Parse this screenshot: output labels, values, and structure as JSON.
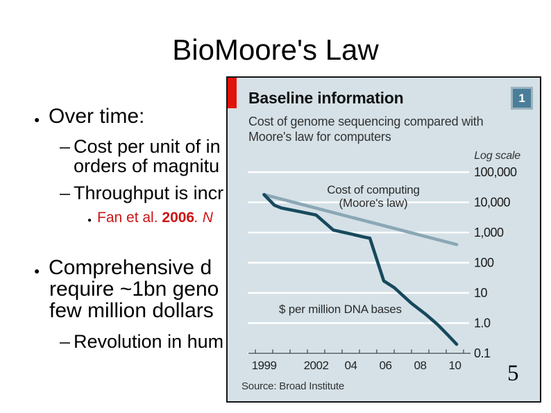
{
  "slide": {
    "title": "BioMoore's Law",
    "page_number": "5",
    "lines": {
      "over_time": "Over time:",
      "cost1": "Cost per unit of in",
      "cost2": "orders of magnitu",
      "throughput": "Throughput is incr",
      "fan_pre": "Fan et al. ",
      "fan_year": "2006",
      "fan_post": ". N",
      "comprehensive1": "Comprehensive d",
      "comprehensive2": "require ~1bn geno",
      "comprehensive3": "few million dollars",
      "revolution": "Revolution in hum"
    },
    "accent_color": "#cc1414"
  },
  "chart": {
    "header": {
      "title": "Baseline information",
      "subtitle_line1": "Cost of genome sequencing compared with",
      "subtitle_line2": "Moore's law for computers",
      "badge": "1"
    },
    "log_scale_label": "Log scale",
    "series_labels": {
      "moore_line1": "Cost of computing",
      "moore_line2": "(Moore's law)",
      "dna": "$ per million DNA bases"
    },
    "source": "Source: Broad Institute",
    "colors": {
      "background": "#d5e1e7",
      "red_tab": "#e3120b",
      "badge_bg": "#4a7e98",
      "dna_line": "#17495c",
      "moore_line": "#8ba7b5",
      "grid": "#ffffff"
    },
    "y_ticks": [
      {
        "label": "100,000",
        "value": 100000
      },
      {
        "label": "10,000",
        "value": 10000
      },
      {
        "label": "1,000",
        "value": 1000
      },
      {
        "label": "100",
        "value": 100
      },
      {
        "label": "10",
        "value": 10
      },
      {
        "label": "1.0",
        "value": 1
      },
      {
        "label": "0.1",
        "value": 0.1
      }
    ],
    "x_ticks": [
      {
        "label": "1999",
        "year": 1999
      },
      {
        "label": "2002",
        "year": 2002
      },
      {
        "label": "04",
        "year": 2004
      },
      {
        "label": "06",
        "year": 2006
      },
      {
        "label": "08",
        "year": 2008
      },
      {
        "label": "10",
        "year": 2010
      }
    ]
  },
  "chart_data": {
    "type": "line",
    "title": "Baseline information",
    "subtitle": "Cost of genome sequencing compared with Moore's law for computers",
    "ylabel": "$ per million DNA bases",
    "y_axis_note": "Log scale",
    "x_range": [
      1999,
      2012
    ],
    "y_range": [
      0.1,
      100000
    ],
    "log_y": true,
    "grid": true,
    "legend_position": "inline-labels",
    "source": "Source: Broad Institute",
    "series": [
      {
        "name": "$ per million DNA bases",
        "color": "#17495c",
        "points": [
          [
            1999,
            18000
          ],
          [
            1999.6,
            8000
          ],
          [
            2000,
            6500
          ],
          [
            2001,
            5000
          ],
          [
            2002,
            3800
          ],
          [
            2003,
            1200
          ],
          [
            2004,
            900
          ],
          [
            2004.8,
            700
          ],
          [
            2005.1,
            650
          ],
          [
            2005.9,
            25
          ],
          [
            2006.5,
            15
          ],
          [
            2007.5,
            4.5
          ],
          [
            2008.3,
            2
          ],
          [
            2009,
            0.9
          ],
          [
            2009.6,
            0.4
          ],
          [
            2010.1,
            0.2
          ]
        ]
      },
      {
        "name": "Cost of computing (Moore's law)",
        "color": "#8ba7b5",
        "points": [
          [
            1999,
            18000
          ],
          [
            2010.1,
            400
          ]
        ]
      }
    ]
  }
}
